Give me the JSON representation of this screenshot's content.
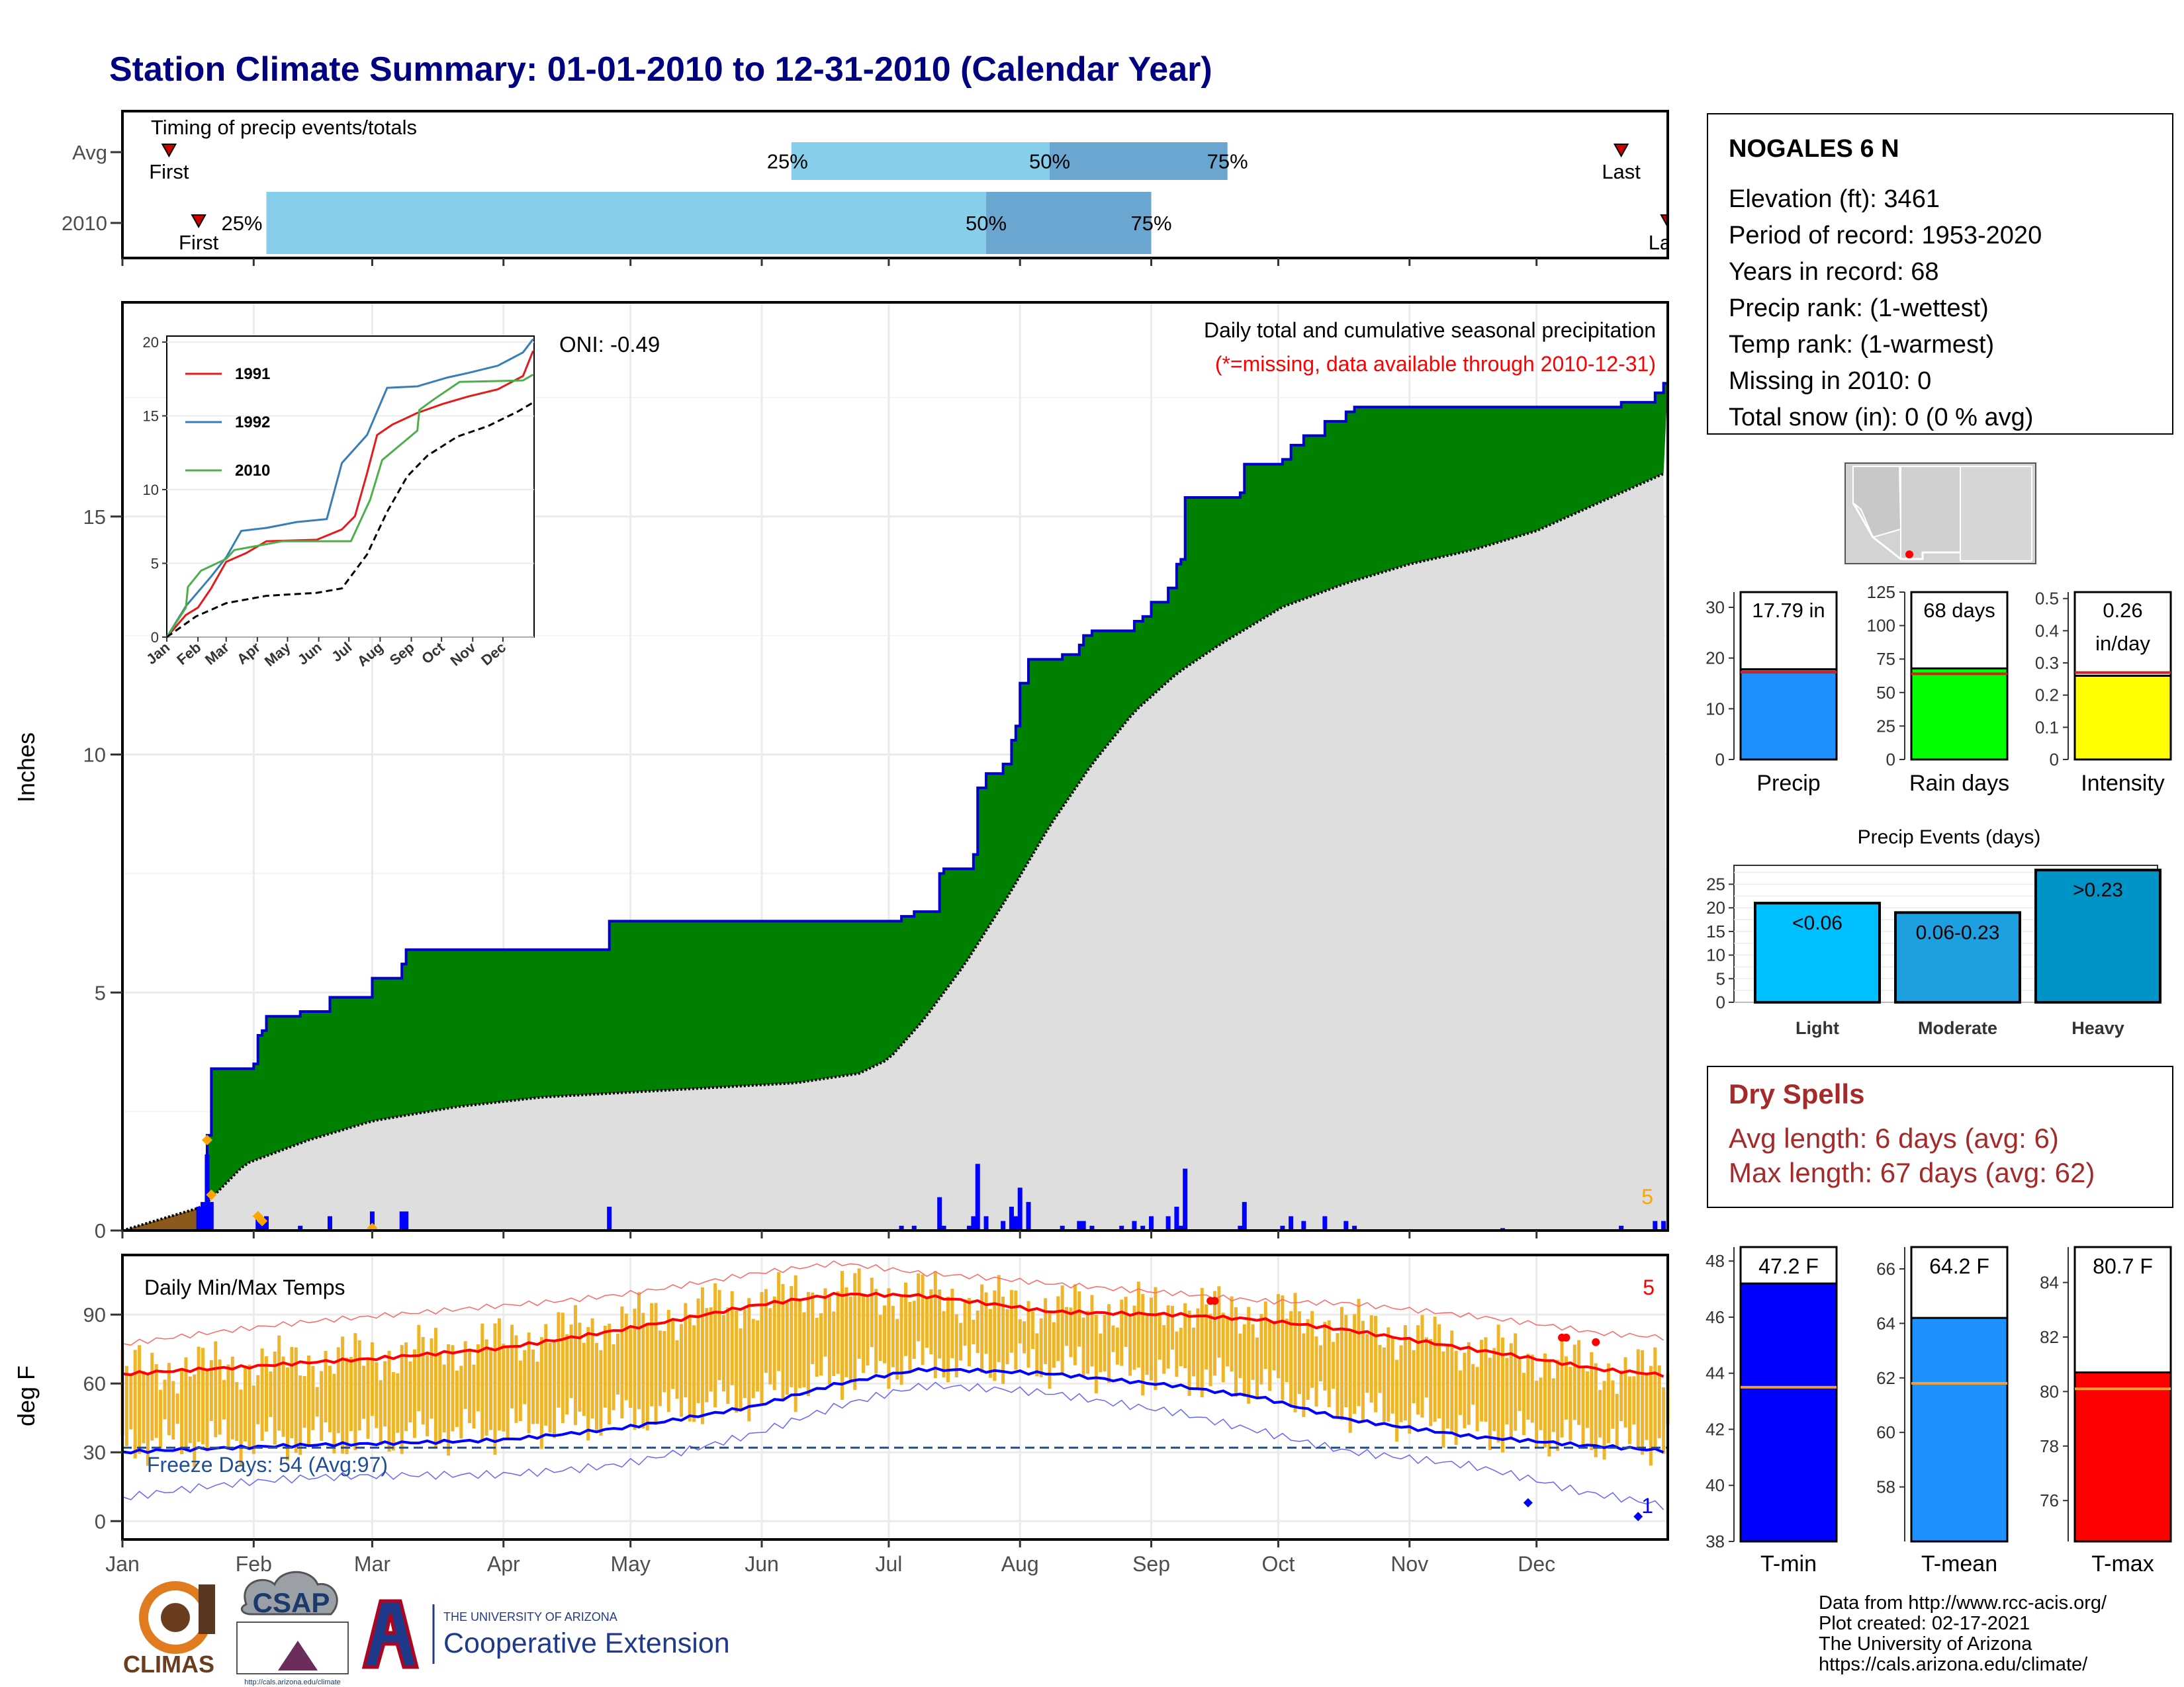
{
  "title": "Station Climate Summary: 01-01-2010 to 12-31-2010 (Calendar Year)",
  "colors": {
    "title": "#000080",
    "precip_bar": "#0000ff",
    "cum_line": "#0000cd",
    "wet": "#008000",
    "avg_fill": "#dedede",
    "early": "#8b5a1a",
    "tmax": "#ff0000",
    "tmin": "#0000ff",
    "range": "#f0b429",
    "light_blue": "#87ceeb",
    "mid_blue": "#6aa6cf",
    "dry": "#a52a2a"
  },
  "months": [
    "Jan",
    "Feb",
    "Mar",
    "Apr",
    "May",
    "Jun",
    "Jul",
    "Aug",
    "Sep",
    "Oct",
    "Nov",
    "Dec"
  ],
  "timing": {
    "label": "Timing of precip events/totals",
    "rows": [
      "Avg",
      "2010"
    ],
    "avg": {
      "first_label": "First",
      "last_label": "Last",
      "p25": "25%",
      "p50": "50%",
      "p75": "75%",
      "first_doy": 12,
      "p25_doy": 159,
      "p50_doy": 220,
      "p75_doy": 262,
      "last_doy": 355
    },
    "y2010": {
      "first_label": "First",
      "last_label": "Last",
      "p25": "25%",
      "p50": "50%",
      "p75": "75%",
      "first_doy": 19,
      "p25_doy": 35,
      "p50_doy": 205,
      "p75_doy": 244,
      "last_doy": 366
    }
  },
  "main": {
    "ylabel": "Inches",
    "yticks": [
      0,
      5,
      10,
      15
    ],
    "ymax": 19.5,
    "oni": "ONI: -0.49",
    "desc": "Daily total and cumulative seasonal precipitation",
    "missing": "(*=missing, data available through 2010-12-31)",
    "count_label": "5",
    "cumulative_2010": [
      [
        1,
        0
      ],
      [
        20,
        0
      ],
      [
        21,
        2.0
      ],
      [
        22,
        3.4
      ],
      [
        32,
        3.5
      ],
      [
        33,
        4.1
      ],
      [
        34,
        4.2
      ],
      [
        35,
        4.5
      ],
      [
        43,
        4.6
      ],
      [
        50,
        4.9
      ],
      [
        60,
        5.3
      ],
      [
        67,
        5.6
      ],
      [
        68,
        5.9
      ],
      [
        115,
        5.9
      ],
      [
        116,
        6.5
      ],
      [
        184,
        6.5
      ],
      [
        185,
        6.6
      ],
      [
        188,
        6.7
      ],
      [
        194,
        7.5
      ],
      [
        195,
        7.6
      ],
      [
        201,
        7.6
      ],
      [
        202,
        7.9
      ],
      [
        203,
        9.3
      ],
      [
        205,
        9.6
      ],
      [
        209,
        9.8
      ],
      [
        211,
        10.3
      ],
      [
        212,
        10.6
      ],
      [
        213,
        11.5
      ],
      [
        215,
        12.0
      ],
      [
        223,
        12.1
      ],
      [
        227,
        12.3
      ],
      [
        228,
        12.5
      ],
      [
        230,
        12.6
      ],
      [
        237,
        12.6
      ],
      [
        240,
        12.8
      ],
      [
        242,
        12.9
      ],
      [
        244,
        13.2
      ],
      [
        248,
        13.5
      ],
      [
        250,
        14.0
      ],
      [
        251,
        14.1
      ],
      [
        252,
        15.4
      ],
      [
        265,
        15.5
      ],
      [
        266,
        16.1
      ],
      [
        275,
        16.2
      ],
      [
        277,
        16.5
      ],
      [
        280,
        16.7
      ],
      [
        285,
        17.0
      ],
      [
        290,
        17.2
      ],
      [
        292,
        17.3
      ],
      [
        327,
        17.3
      ],
      [
        355,
        17.4
      ],
      [
        363,
        17.6
      ],
      [
        365,
        17.8
      ]
    ],
    "avg_cumulative": [
      [
        1,
        0
      ],
      [
        20,
        0.5
      ],
      [
        30,
        1.4
      ],
      [
        45,
        1.9
      ],
      [
        60,
        2.3
      ],
      [
        80,
        2.6
      ],
      [
        100,
        2.8
      ],
      [
        120,
        2.9
      ],
      [
        140,
        3.0
      ],
      [
        160,
        3.1
      ],
      [
        175,
        3.3
      ],
      [
        182,
        3.6
      ],
      [
        190,
        4.4
      ],
      [
        200,
        5.6
      ],
      [
        210,
        7.0
      ],
      [
        220,
        8.5
      ],
      [
        230,
        9.8
      ],
      [
        240,
        10.9
      ],
      [
        250,
        11.7
      ],
      [
        260,
        12.3
      ],
      [
        275,
        13.1
      ],
      [
        290,
        13.6
      ],
      [
        305,
        14.0
      ],
      [
        320,
        14.3
      ],
      [
        335,
        14.7
      ],
      [
        350,
        15.3
      ],
      [
        365,
        15.9
      ]
    ],
    "daily_bars": [
      [
        19,
        0.5
      ],
      [
        20,
        0.6
      ],
      [
        21,
        1.6
      ],
      [
        22,
        0.6
      ],
      [
        33,
        0.3
      ],
      [
        34,
        0.2
      ],
      [
        35,
        0.3
      ],
      [
        43,
        0.1
      ],
      [
        50,
        0.3
      ],
      [
        60,
        0.4
      ],
      [
        67,
        0.4
      ],
      [
        68,
        0.4
      ],
      [
        116,
        0.5
      ],
      [
        185,
        0.1
      ],
      [
        188,
        0.1
      ],
      [
        194,
        0.7
      ],
      [
        195,
        0.1
      ],
      [
        201,
        0.1
      ],
      [
        202,
        0.3
      ],
      [
        203,
        1.4
      ],
      [
        205,
        0.3
      ],
      [
        209,
        0.2
      ],
      [
        211,
        0.5
      ],
      [
        212,
        0.3
      ],
      [
        213,
        0.9
      ],
      [
        215,
        0.6
      ],
      [
        223,
        0.1
      ],
      [
        227,
        0.2
      ],
      [
        228,
        0.2
      ],
      [
        230,
        0.1
      ],
      [
        237,
        0.1
      ],
      [
        240,
        0.2
      ],
      [
        242,
        0.1
      ],
      [
        244,
        0.3
      ],
      [
        248,
        0.3
      ],
      [
        250,
        0.5
      ],
      [
        251,
        0.1
      ],
      [
        252,
        1.3
      ],
      [
        265,
        0.1
      ],
      [
        266,
        0.6
      ],
      [
        275,
        0.1
      ],
      [
        277,
        0.3
      ],
      [
        280,
        0.2
      ],
      [
        285,
        0.3
      ],
      [
        290,
        0.2
      ],
      [
        292,
        0.1
      ],
      [
        327,
        0.05
      ],
      [
        355,
        0.1
      ],
      [
        363,
        0.2
      ],
      [
        365,
        0.2
      ]
    ],
    "markers": [
      [
        21,
        1.9
      ],
      [
        22,
        0.75
      ],
      [
        33,
        0.3
      ],
      [
        34,
        0.2
      ],
      [
        60,
        0.05
      ]
    ]
  },
  "inset": {
    "yticks": [
      0,
      5,
      10,
      15,
      20
    ],
    "ymax": 20,
    "legend": [
      "1991",
      "1992",
      "2010"
    ],
    "month_labels": [
      "Jan",
      "Feb",
      "Mar",
      "Apr",
      "May",
      "Jun",
      "Jul",
      "Aug",
      "Sep",
      "Oct",
      "Nov",
      "Dec"
    ],
    "series": [
      {
        "name": "1991",
        "color": "#e41a1c",
        "points": [
          [
            1,
            0
          ],
          [
            20,
            1.5
          ],
          [
            32,
            2.0
          ],
          [
            45,
            3.3
          ],
          [
            60,
            5.1
          ],
          [
            80,
            5.7
          ],
          [
            100,
            6.5
          ],
          [
            150,
            6.6
          ],
          [
            175,
            7.3
          ],
          [
            188,
            8.2
          ],
          [
            200,
            11.1
          ],
          [
            210,
            13.7
          ],
          [
            225,
            14.4
          ],
          [
            250,
            15.2
          ],
          [
            275,
            15.8
          ],
          [
            300,
            16.3
          ],
          [
            330,
            16.8
          ],
          [
            355,
            17.7
          ],
          [
            365,
            19.4
          ]
        ]
      },
      {
        "name": "1992",
        "color": "#377eb8",
        "points": [
          [
            1,
            0
          ],
          [
            20,
            2.1
          ],
          [
            35,
            3.3
          ],
          [
            45,
            4.1
          ],
          [
            60,
            5.4
          ],
          [
            75,
            7.2
          ],
          [
            100,
            7.4
          ],
          [
            130,
            7.8
          ],
          [
            160,
            8.0
          ],
          [
            175,
            11.8
          ],
          [
            200,
            13.7
          ],
          [
            210,
            15.3
          ],
          [
            220,
            16.9
          ],
          [
            250,
            17.0
          ],
          [
            280,
            17.6
          ],
          [
            300,
            17.9
          ],
          [
            330,
            18.4
          ],
          [
            355,
            19.3
          ],
          [
            365,
            20.2
          ]
        ]
      },
      {
        "name": "2010",
        "color": "#4daf4a",
        "points": [
          [
            1,
            0
          ],
          [
            20,
            2.0
          ],
          [
            22,
            3.4
          ],
          [
            35,
            4.5
          ],
          [
            60,
            5.3
          ],
          [
            68,
            5.9
          ],
          [
            116,
            6.5
          ],
          [
            184,
            6.5
          ],
          [
            203,
            9.3
          ],
          [
            215,
            12.0
          ],
          [
            250,
            14.0
          ],
          [
            252,
            15.4
          ],
          [
            266,
            16.1
          ],
          [
            292,
            17.3
          ],
          [
            355,
            17.4
          ],
          [
            365,
            17.8
          ]
        ]
      },
      {
        "name": "avg",
        "color": "#000000",
        "points": [
          [
            1,
            0
          ],
          [
            30,
            1.4
          ],
          [
            60,
            2.3
          ],
          [
            100,
            2.8
          ],
          [
            150,
            3.0
          ],
          [
            175,
            3.3
          ],
          [
            200,
            5.6
          ],
          [
            220,
            8.5
          ],
          [
            240,
            10.9
          ],
          [
            260,
            12.3
          ],
          [
            290,
            13.6
          ],
          [
            320,
            14.3
          ],
          [
            350,
            15.3
          ],
          [
            365,
            15.9
          ]
        ]
      }
    ]
  },
  "temps": {
    "ylabel": "deg F",
    "label": "Daily Min/Max Temps",
    "freeze": "Freeze Days: 54 (Avg:97)",
    "count_label": "5",
    "min_count_label": "1",
    "yticks": [
      0,
      30,
      60,
      90
    ],
    "ymin": -8,
    "ymax": 116,
    "avg_tmax": [
      [
        1,
        64
      ],
      [
        30,
        66
      ],
      [
        60,
        70
      ],
      [
        90,
        76
      ],
      [
        120,
        85
      ],
      [
        150,
        94
      ],
      [
        170,
        98
      ],
      [
        190,
        97
      ],
      [
        220,
        91
      ],
      [
        250,
        91
      ],
      [
        270,
        89
      ],
      [
        290,
        84
      ],
      [
        320,
        74
      ],
      [
        350,
        65
      ],
      [
        366,
        63
      ]
    ],
    "avg_tmin": [
      [
        1,
        30
      ],
      [
        30,
        31
      ],
      [
        60,
        33
      ],
      [
        90,
        36
      ],
      [
        120,
        42
      ],
      [
        150,
        50
      ],
      [
        170,
        59
      ],
      [
        190,
        65
      ],
      [
        220,
        64
      ],
      [
        250,
        60
      ],
      [
        270,
        55
      ],
      [
        290,
        45
      ],
      [
        320,
        36
      ],
      [
        345,
        32
      ],
      [
        366,
        30
      ]
    ],
    "rec_max": [
      [
        1,
        77
      ],
      [
        30,
        82
      ],
      [
        60,
        88
      ],
      [
        90,
        95
      ],
      [
        120,
        101
      ],
      [
        150,
        108
      ],
      [
        170,
        111
      ],
      [
        190,
        106
      ],
      [
        220,
        103
      ],
      [
        250,
        101
      ],
      [
        270,
        98
      ],
      [
        290,
        96
      ],
      [
        320,
        88
      ],
      [
        350,
        80
      ],
      [
        366,
        79
      ]
    ],
    "rec_min": [
      [
        1,
        10
      ],
      [
        30,
        14
      ],
      [
        60,
        18
      ],
      [
        90,
        22
      ],
      [
        120,
        28
      ],
      [
        150,
        38
      ],
      [
        170,
        48
      ],
      [
        190,
        56
      ],
      [
        220,
        55
      ],
      [
        250,
        50
      ],
      [
        270,
        42
      ],
      [
        290,
        32
      ],
      [
        320,
        22
      ],
      [
        345,
        10
      ],
      [
        366,
        5
      ]
    ],
    "freeze_line": 32,
    "record_high_points": [
      [
        258,
        96
      ],
      [
        259,
        96
      ],
      [
        341,
        80
      ],
      [
        342,
        80
      ],
      [
        349,
        78
      ]
    ],
    "record_low_points": [
      [
        333,
        8
      ],
      [
        359,
        2
      ]
    ]
  },
  "station": {
    "name": "NOGALES 6 N",
    "lines": [
      "Elevation (ft): 3461",
      "Period of record: 1953-2020",
      "Years in record: 68",
      "Precip rank:  (1-wettest)",
      "Temp rank:  (1-warmest)",
      "Missing in 2010: 0",
      "Total snow (in): 0 (0 % avg)"
    ]
  },
  "summary_bars": [
    {
      "label": "Precip",
      "value": 17.79,
      "value_text": "17.79 in",
      "avg": 17.2,
      "ymax": 33,
      "yticks": [
        0,
        10,
        20,
        30
      ],
      "color": "#1e90ff"
    },
    {
      "label": "Rain days",
      "value": 68,
      "value_text": "68 days",
      "avg": 64,
      "ymax": 125,
      "yticks": [
        0,
        25,
        50,
        75,
        100,
        125
      ],
      "color": "#00ff00"
    },
    {
      "label": "Intensity",
      "value": 0.26,
      "value_text": "0.26",
      "value_text2": "in/day",
      "avg": 0.27,
      "ymax": 0.52,
      "yticks": [
        0.0,
        0.1,
        0.2,
        0.3,
        0.4,
        0.5
      ],
      "color": "#ffff00"
    }
  ],
  "events": {
    "title": "Precip Events (days)",
    "yticks": [
      0,
      5,
      10,
      15,
      20,
      25
    ],
    "ymax": 29,
    "bars": [
      {
        "label": "Light",
        "range": "<0.06",
        "value": 21,
        "color": "#00bfff"
      },
      {
        "label": "Moderate",
        "range": "0.06-0.23",
        "value": 19,
        "color": "#1ea0e0"
      },
      {
        "label": "Heavy",
        "range": ">0.23",
        "value": 28,
        "color": "#0093c8"
      }
    ]
  },
  "dry_spells": {
    "title": "Dry Spells",
    "avg": "Avg length: 6 days (avg: 6)",
    "max": "Max length: 67 days (avg: 62)"
  },
  "temp_bars": [
    {
      "label": "T-min",
      "value": 47.2,
      "value_text": "47.2 F",
      "avg": 43.5,
      "ymin": 38,
      "ymax": 48.5,
      "yticks": [
        38,
        40,
        42,
        44,
        46,
        48
      ],
      "color": "#0000ff"
    },
    {
      "label": "T-mean",
      "value": 64.2,
      "value_text": "64.2 F",
      "avg": 61.8,
      "ymin": 56,
      "ymax": 66.8,
      "yticks": [
        58,
        60,
        62,
        64,
        66
      ],
      "color": "#1e90ff"
    },
    {
      "label": "T-max",
      "value": 80.7,
      "value_text": "80.7 F",
      "avg": 80.1,
      "ymin": 74.5,
      "ymax": 85.3,
      "yticks": [
        76,
        78,
        80,
        82,
        84
      ],
      "color": "#ff0000"
    }
  ],
  "footer": {
    "lines": [
      "Data from http://www.rcc-acis.org/",
      "Plot created: 02-17-2021",
      "The University of Arizona",
      "https://cals.arizona.edu/climate/"
    ],
    "climas": "CLIMAS",
    "csap": "CSAP",
    "csap_url": "http://cals.arizona.edu/climate",
    "ua_top": "THE UNIVERSITY OF ARIZONA",
    "ua_bottom": "Cooperative Extension"
  }
}
